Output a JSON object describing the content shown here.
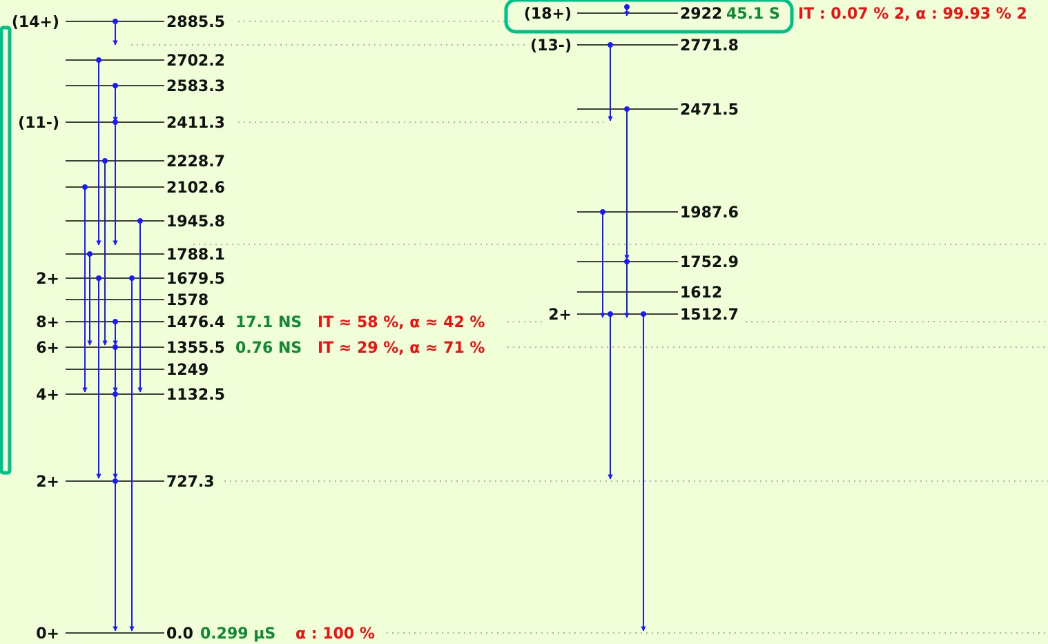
{
  "colors": {
    "background": "#f1ffd9",
    "level_line": "#000000",
    "transition": "#1a1aff",
    "half_life": "#118833",
    "decay_mode": "#ee1111",
    "highlight": "#00c08a",
    "guide": "#9a9a9a"
  },
  "levels_left": [
    {
      "energy": "2885.5",
      "spin": "(14+)",
      "half_life": "",
      "decay": ""
    },
    {
      "energy": "2702.2",
      "spin": "",
      "half_life": "",
      "decay": ""
    },
    {
      "energy": "2583.3",
      "spin": "",
      "half_life": "",
      "decay": ""
    },
    {
      "energy": "2411.3",
      "spin": "(11-)",
      "half_life": "",
      "decay": ""
    },
    {
      "energy": "2228.7",
      "spin": "",
      "half_life": "",
      "decay": ""
    },
    {
      "energy": "2102.6",
      "spin": "",
      "half_life": "",
      "decay": ""
    },
    {
      "energy": "1945.8",
      "spin": "",
      "half_life": "",
      "decay": ""
    },
    {
      "energy": "1788.1",
      "spin": "",
      "half_life": "",
      "decay": ""
    },
    {
      "energy": "1679.5",
      "spin": "2+",
      "half_life": "",
      "decay": ""
    },
    {
      "energy": "1578",
      "spin": "",
      "half_life": "",
      "decay": ""
    },
    {
      "energy": "1476.4",
      "spin": "8+",
      "half_life": "17.1 NS",
      "decay": "IT ≈ 58 %, α ≈ 42 %"
    },
    {
      "energy": "1355.5",
      "spin": "6+",
      "half_life": "0.76 NS",
      "decay": "IT ≈ 29 %, α ≈ 71 %"
    },
    {
      "energy": "1249",
      "spin": "",
      "half_life": "",
      "decay": ""
    },
    {
      "energy": "1132.5",
      "spin": "4+",
      "half_life": "",
      "decay": ""
    },
    {
      "energy": "727.3",
      "spin": "2+",
      "half_life": "",
      "decay": ""
    },
    {
      "energy": "0.0",
      "spin": "0+",
      "half_life": "0.299 µS",
      "decay": "α : 100 %"
    }
  ],
  "levels_right": [
    {
      "energy": "2922",
      "spin": "(18+)",
      "half_life": "45.1 S",
      "decay": "IT : 0.07 % 2, α : 99.93 % 2"
    },
    {
      "energy": "2771.8",
      "spin": "(13-)",
      "half_life": "",
      "decay": ""
    },
    {
      "energy": "2471.5",
      "spin": "",
      "half_life": "",
      "decay": ""
    },
    {
      "energy": "1987.6",
      "spin": "",
      "half_life": "",
      "decay": ""
    },
    {
      "energy": "1752.9",
      "spin": "",
      "half_life": "",
      "decay": ""
    },
    {
      "energy": "1612",
      "spin": "",
      "half_life": "",
      "decay": ""
    },
    {
      "energy": "1512.7",
      "spin": "2+",
      "half_life": "",
      "decay": ""
    }
  ],
  "transitions": [
    {
      "from": "2885.5",
      "to": "2771.8"
    },
    {
      "from": "2702.2",
      "to": "1788.1"
    },
    {
      "from": "2702.2",
      "to": "727.3"
    },
    {
      "from": "2583.3",
      "to": "2411.3"
    },
    {
      "from": "2411.3",
      "to": "1788.1"
    },
    {
      "from": "2228.7",
      "to": "1355.5"
    },
    {
      "from": "2102.6",
      "to": "1132.5"
    },
    {
      "from": "1945.8",
      "to": "1132.5"
    },
    {
      "from": "1788.1",
      "to": "1355.5"
    },
    {
      "from": "1679.5",
      "to": "1355.5"
    },
    {
      "from": "1679.5",
      "to": "0.0"
    },
    {
      "from": "1476.4",
      "to": "1355.5"
    },
    {
      "from": "1355.5",
      "to": "1132.5"
    },
    {
      "from": "1132.5",
      "to": "727.3"
    },
    {
      "from": "727.3",
      "to": "0.0"
    },
    {
      "from": "2922",
      "to": "2922"
    },
    {
      "from": "2771.8",
      "to": "2411.3"
    },
    {
      "from": "2471.5",
      "to": "1752.9"
    },
    {
      "from": "1752.9",
      "to": "1512.7"
    },
    {
      "from": "1987.6",
      "to": "1512.7"
    },
    {
      "from": "1512.7",
      "to": "1512.7"
    },
    {
      "from": "1512.7",
      "to": "727.3"
    },
    {
      "from": "1512.7",
      "to": "0.0"
    }
  ],
  "highlights": [
    {
      "target": "left-scheme-bracket"
    },
    {
      "target": "level-2922"
    }
  ]
}
